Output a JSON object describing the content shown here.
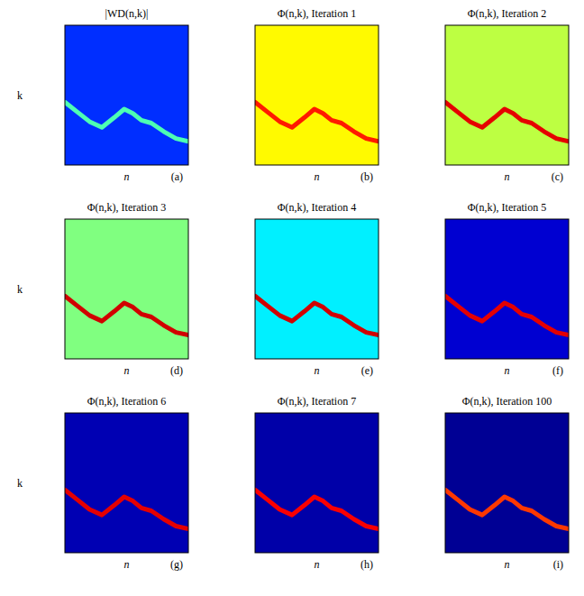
{
  "chart_data": [
    {
      "type": "heatmap",
      "title": "|WD(n,k)|",
      "panel_label": "(a)",
      "xlabel": "n",
      "ylabel": "k",
      "tick_labels": false,
      "xlim": [
        0,
        100
      ],
      "ylim": [
        0,
        100
      ],
      "zlim": [
        0,
        1
      ],
      "background_value": 0.17,
      "ridge_value": 0.45,
      "ridge": {
        "x": [
          0,
          10,
          20,
          30,
          40,
          48,
          55,
          62,
          70,
          80,
          90,
          100
        ],
        "y": [
          45,
          38,
          31,
          27,
          34,
          40,
          37,
          32,
          30,
          24,
          19,
          17
        ]
      }
    },
    {
      "type": "heatmap",
      "title": "Φ(n,k), Iteration 1",
      "panel_label": "(b)",
      "xlabel": "n",
      "tick_labels": false,
      "xlim": [
        0,
        100
      ],
      "ylim": [
        0,
        100
      ],
      "zlim": [
        0,
        1
      ],
      "background_value": 0.63,
      "ridge_value": 0.85,
      "ridge": {
        "x": [
          0,
          10,
          20,
          30,
          40,
          48,
          55,
          62,
          70,
          80,
          90,
          100
        ],
        "y": [
          45,
          38,
          31,
          27,
          34,
          40,
          37,
          32,
          30,
          24,
          19,
          17
        ]
      }
    },
    {
      "type": "heatmap",
      "title": "Φ(n,k), Iteration 2",
      "panel_label": "(c)",
      "xlabel": "n",
      "tick_labels": false,
      "xlim": [
        0,
        100
      ],
      "ylim": [
        0,
        100
      ],
      "zlim": [
        0,
        1
      ],
      "background_value": 0.56,
      "ridge_value": 0.9,
      "ridge": {
        "x": [
          0,
          10,
          20,
          30,
          40,
          48,
          55,
          62,
          70,
          80,
          90,
          100
        ],
        "y": [
          45,
          38,
          31,
          27,
          34,
          40,
          37,
          32,
          30,
          24,
          19,
          17
        ]
      }
    },
    {
      "type": "heatmap",
      "title": "Φ(n,k), Iteration 3",
      "panel_label": "(d)",
      "xlabel": "n",
      "ylabel": "k",
      "tick_labels": false,
      "xlim": [
        0,
        100
      ],
      "ylim": [
        0,
        100
      ],
      "zlim": [
        0,
        1
      ],
      "background_value": 0.5,
      "ridge_value": 0.92,
      "ridge": {
        "x": [
          0,
          10,
          20,
          30,
          40,
          48,
          55,
          62,
          70,
          80,
          90,
          100
        ],
        "y": [
          45,
          38,
          31,
          27,
          34,
          40,
          37,
          32,
          30,
          24,
          19,
          17
        ]
      }
    },
    {
      "type": "heatmap",
      "title": "Φ(n,k), Iteration 4",
      "panel_label": "(e)",
      "xlabel": "n",
      "tick_labels": false,
      "xlim": [
        0,
        100
      ],
      "ylim": [
        0,
        100
      ],
      "zlim": [
        0,
        1
      ],
      "background_value": 0.36,
      "ridge_value": 0.92,
      "ridge": {
        "x": [
          0,
          10,
          20,
          30,
          40,
          48,
          55,
          62,
          70,
          80,
          90,
          100
        ],
        "y": [
          45,
          38,
          31,
          27,
          34,
          40,
          37,
          32,
          30,
          24,
          19,
          17
        ]
      }
    },
    {
      "type": "heatmap",
      "title": "Φ(n,k), Iteration 5",
      "panel_label": "(f)",
      "xlabel": "n",
      "tick_labels": false,
      "xlim": [
        0,
        100
      ],
      "ylim": [
        0,
        100
      ],
      "zlim": [
        0,
        1
      ],
      "background_value": 0.08,
      "ridge_value": 0.9,
      "ridge": {
        "x": [
          0,
          10,
          20,
          30,
          40,
          48,
          55,
          62,
          70,
          80,
          90,
          100
        ],
        "y": [
          45,
          38,
          31,
          27,
          34,
          40,
          37,
          32,
          30,
          24,
          19,
          17
        ]
      }
    },
    {
      "type": "heatmap",
      "title": "Φ(n,k), Iteration 6",
      "panel_label": "(g)",
      "xlabel": "n",
      "ylabel": "k",
      "tick_labels": false,
      "xlim": [
        0,
        100
      ],
      "ylim": [
        0,
        100
      ],
      "zlim": [
        0,
        1
      ],
      "background_value": 0.05,
      "ridge_value": 0.9,
      "ridge": {
        "x": [
          0,
          10,
          20,
          30,
          40,
          48,
          55,
          62,
          70,
          80,
          90,
          100
        ],
        "y": [
          45,
          38,
          31,
          27,
          34,
          40,
          37,
          32,
          30,
          24,
          19,
          17
        ]
      }
    },
    {
      "type": "heatmap",
      "title": "Φ(n,k), Iteration 7",
      "panel_label": "(h)",
      "xlabel": "n",
      "tick_labels": false,
      "xlim": [
        0,
        100
      ],
      "ylim": [
        0,
        100
      ],
      "zlim": [
        0,
        1
      ],
      "background_value": 0.04,
      "ridge_value": 0.88,
      "ridge": {
        "x": [
          0,
          10,
          20,
          30,
          40,
          48,
          55,
          62,
          70,
          80,
          90,
          100
        ],
        "y": [
          45,
          38,
          31,
          27,
          34,
          40,
          37,
          32,
          30,
          24,
          19,
          17
        ]
      }
    },
    {
      "type": "heatmap",
      "title": "Φ(n,k), Iteration 100",
      "panel_label": "(i)",
      "xlabel": "n",
      "tick_labels": false,
      "xlim": [
        0,
        100
      ],
      "ylim": [
        0,
        100
      ],
      "zlim": [
        0,
        1
      ],
      "background_value": 0.02,
      "ridge_value": 0.82,
      "ridge": {
        "x": [
          0,
          10,
          20,
          30,
          40,
          48,
          55,
          62,
          70,
          80,
          90,
          100
        ],
        "y": [
          45,
          38,
          31,
          27,
          34,
          40,
          37,
          32,
          30,
          24,
          19,
          17
        ]
      }
    }
  ]
}
